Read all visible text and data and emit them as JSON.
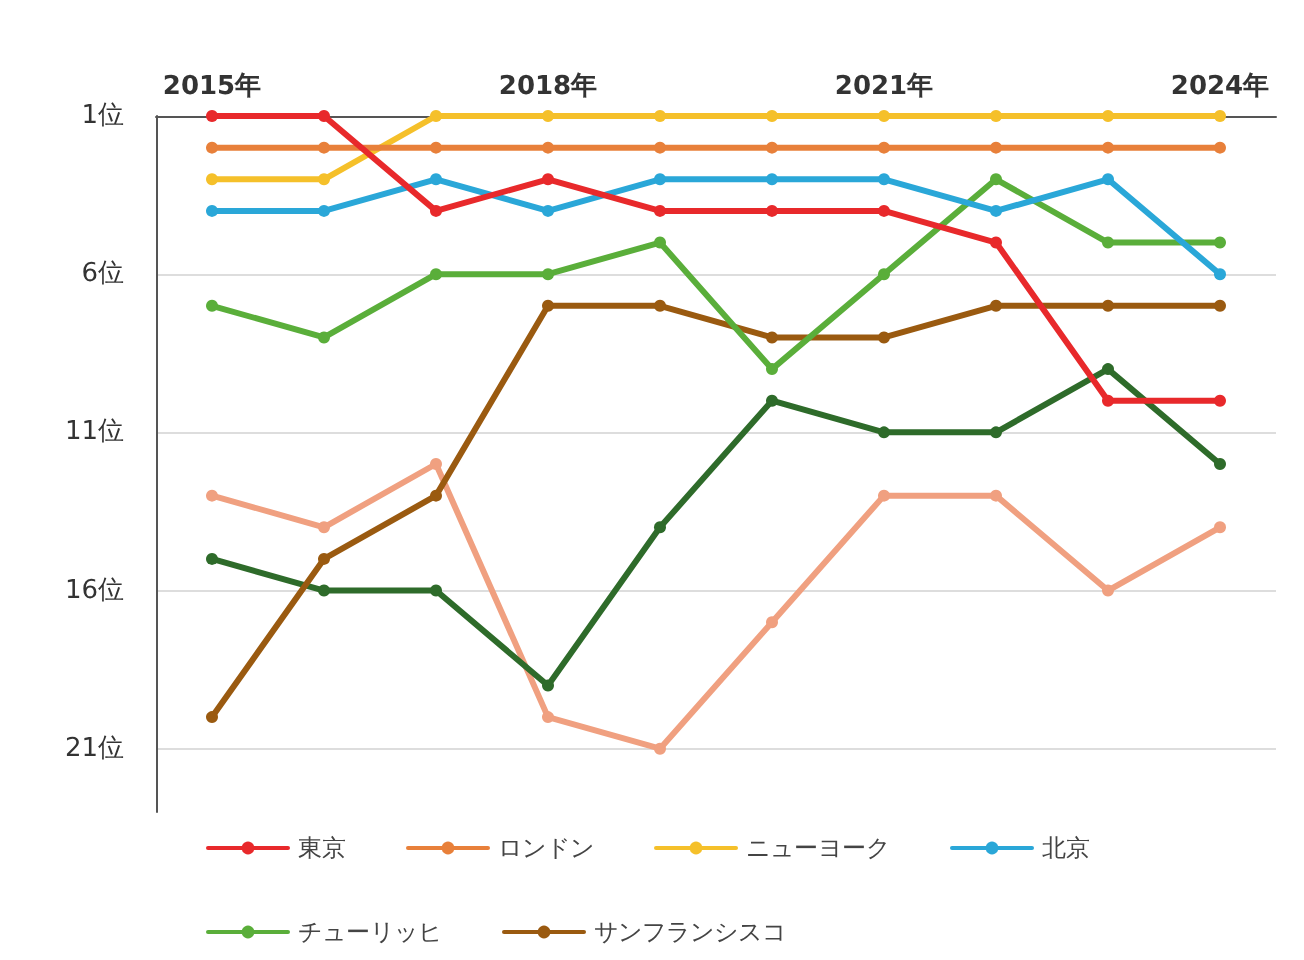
{
  "chart_data": {
    "type": "line",
    "x": [
      2015,
      2016,
      2017,
      2018,
      2019,
      2020,
      2021,
      2022,
      2023,
      2024
    ],
    "xlim": [
      2014.5,
      2024.5
    ],
    "xticks": [
      {
        "value": 2015,
        "label": "2015年"
      },
      {
        "value": 2018,
        "label": "2018年"
      },
      {
        "value": 2021,
        "label": "2021年"
      },
      {
        "value": 2024,
        "label": "2024年"
      }
    ],
    "ylim": [
      23,
      1
    ],
    "yticks": [
      {
        "value": 1,
        "label": "1位"
      },
      {
        "value": 6,
        "label": "6位"
      },
      {
        "value": 11,
        "label": "11位"
      },
      {
        "value": 16,
        "label": "16位"
      },
      {
        "value": 21,
        "label": "21位"
      }
    ],
    "series": [
      {
        "name": "東京",
        "color": "#e8292b",
        "values": [
          1,
          1,
          4,
          3,
          4,
          4,
          4,
          5,
          10,
          10
        ]
      },
      {
        "name": "ロンドン",
        "color": "#e8803a",
        "values": [
          2,
          2,
          2,
          2,
          2,
          2,
          2,
          2,
          2,
          2
        ]
      },
      {
        "name": "ニューヨーク",
        "color": "#f5c02a",
        "values": [
          3,
          3,
          1,
          1,
          1,
          1,
          1,
          1,
          1,
          1
        ]
      },
      {
        "name": "北京",
        "color": "#2aa7d8",
        "values": [
          4,
          4,
          3,
          4,
          3,
          3,
          3,
          4,
          3,
          6
        ]
      },
      {
        "name": "チューリッヒ",
        "color": "#5aae3a",
        "values": [
          7,
          8,
          6,
          6,
          5,
          9,
          6,
          3,
          5,
          5
        ]
      },
      {
        "name": "サンフランシスコ",
        "color": "#9a5a10",
        "values": [
          20,
          15,
          13,
          7,
          7,
          8,
          8,
          7,
          7,
          7
        ]
      },
      {
        "color": "#2e6b2a",
        "values": [
          15,
          16,
          16,
          19,
          14,
          10,
          11,
          11,
          9,
          12
        ]
      },
      {
        "color": "#f0a080",
        "values": [
          13,
          14,
          12,
          20,
          21,
          17,
          13,
          13,
          16,
          14
        ]
      }
    ],
    "grid": "y",
    "legend": "bottom",
    "marker": "circle",
    "line_style": "solid"
  }
}
